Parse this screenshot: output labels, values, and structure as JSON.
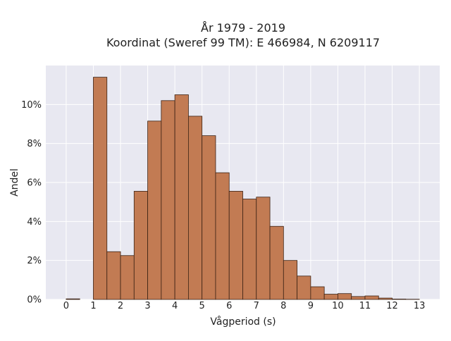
{
  "chart_data": {
    "type": "bar",
    "title_line1": "År 1979 - 2019",
    "title_line2": "Koordinat (Sweref 99 TM): E 466984, N 6209117",
    "xlabel": "Vågperiod (s)",
    "ylabel": "Andel",
    "xlim": [
      -0.75,
      13.75
    ],
    "ylim": [
      0,
      12.0
    ],
    "bin_width": 0.5,
    "x_ticks": [
      0,
      1,
      2,
      3,
      4,
      5,
      6,
      7,
      8,
      9,
      10,
      11,
      12,
      13
    ],
    "x_tick_labels": [
      "0",
      "1",
      "2",
      "3",
      "4",
      "5",
      "6",
      "7",
      "8",
      "9",
      "10",
      "11",
      "12",
      "13"
    ],
    "y_ticks": [
      0,
      2,
      4,
      6,
      8,
      10
    ],
    "y_tick_labels": [
      "0%",
      "2%",
      "4%",
      "6%",
      "8%",
      "10%"
    ],
    "bin_starts": [
      0.0,
      0.5,
      1.0,
      1.5,
      2.0,
      2.5,
      3.0,
      3.5,
      4.0,
      4.5,
      5.0,
      5.5,
      6.0,
      6.5,
      7.0,
      7.5,
      8.0,
      8.5,
      9.0,
      9.5,
      10.0,
      10.5,
      11.0,
      11.5,
      12.0,
      12.5
    ],
    "values": [
      0.03,
      0.0,
      11.4,
      2.45,
      2.25,
      5.55,
      9.15,
      10.2,
      10.5,
      9.4,
      8.4,
      6.5,
      5.55,
      5.15,
      5.25,
      3.75,
      2.0,
      1.2,
      0.65,
      0.27,
      0.3,
      0.15,
      0.18,
      0.07,
      0.02,
      0.01
    ],
    "unit": "%",
    "grid": true,
    "colors": {
      "bar_fill": "#c27b53",
      "bar_edge": "#3b2214",
      "plot_background": "#e8e8f1",
      "grid": "#ffffff"
    }
  }
}
